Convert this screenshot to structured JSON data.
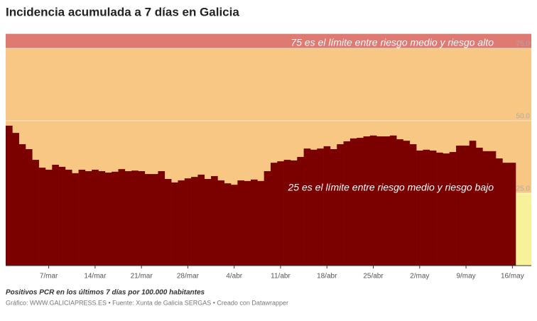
{
  "chart_data": {
    "type": "bar",
    "title": "Incidencia acumulada a 7 días en Galicia",
    "categories": [
      null,
      null,
      null,
      null,
      null,
      null,
      "7/mar",
      null,
      null,
      null,
      null,
      null,
      null,
      "14/mar",
      null,
      null,
      null,
      null,
      null,
      null,
      "21/mar",
      null,
      null,
      null,
      null,
      null,
      null,
      "28/mar",
      null,
      null,
      null,
      null,
      null,
      null,
      "4/abr",
      null,
      null,
      null,
      null,
      null,
      null,
      "11/abr",
      null,
      null,
      null,
      null,
      null,
      null,
      "18/abr",
      null,
      null,
      null,
      null,
      null,
      null,
      "25/abr",
      null,
      null,
      null,
      null,
      null,
      null,
      "2/may",
      null,
      null,
      null,
      null,
      null,
      null,
      "9/may",
      null,
      null,
      null,
      null,
      null,
      null,
      "16/may"
    ],
    "values": [
      48.3,
      45.8,
      41.9,
      40.2,
      36.5,
      33.8,
      33.1,
      34.8,
      34.1,
      33.1,
      31.9,
      33.1,
      32.6,
      33.1,
      32.6,
      32.1,
      32.4,
      33.3,
      32.6,
      32.8,
      32.6,
      31.6,
      31.6,
      32.6,
      29.9,
      28.7,
      29.4,
      30.1,
      30.6,
      31.4,
      29.9,
      30.9,
      29.4,
      28.4,
      27.9,
      29.4,
      29.2,
      29.7,
      29.2,
      32.6,
      35.5,
      36.0,
      36.5,
      36.3,
      37.5,
      40.4,
      40.0,
      40.4,
      41.2,
      40.2,
      41.9,
      42.9,
      43.9,
      44.1,
      44.6,
      44.9,
      44.6,
      44.6,
      44.9,
      43.6,
      43.1,
      41.9,
      39.7,
      40.0,
      39.7,
      39.0,
      38.7,
      39.2,
      41.4,
      41.4,
      43.1,
      40.7,
      39.5,
      39.5,
      37.0,
      35.5,
      35.5
    ],
    "color": "#7b0000",
    "ylim": [
      0,
      80
    ],
    "yticks": [
      {
        "value": 25,
        "label": "25.0"
      },
      {
        "value": 50,
        "label": "50.0"
      },
      {
        "value": 75,
        "label": "75.0"
      }
    ],
    "grid": true,
    "bands": [
      {
        "from": 0,
        "to": 75,
        "color": "#f9c784"
      },
      {
        "from": 75,
        "to": 80,
        "color": "#df7a72"
      }
    ],
    "annotations": [
      {
        "text": "75 es el límite entre riesgo medio y riesgo alto",
        "y": 75
      },
      {
        "text": "25 es el límite entre riesgo medio y riesgo bajo",
        "y": 25
      }
    ],
    "subtitle": "Positivos PCR en los últimos 7 días por 100.000 habitantes",
    "source": "Gráfico: WWW.GALICIAPRESS.ES • Fuente: Xunta de Galicia SERGAS • Creado con Datawrapper"
  }
}
